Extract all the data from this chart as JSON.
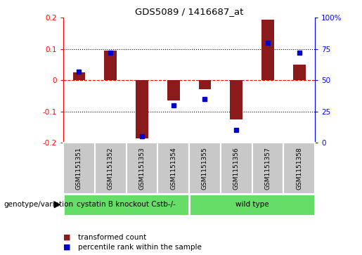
{
  "title": "GDS5089 / 1416687_at",
  "samples": [
    "GSM1151351",
    "GSM1151352",
    "GSM1151353",
    "GSM1151354",
    "GSM1151355",
    "GSM1151356",
    "GSM1151357",
    "GSM1151358"
  ],
  "transformed_count": [
    0.025,
    0.095,
    -0.185,
    -0.065,
    -0.028,
    -0.125,
    0.195,
    0.05
  ],
  "percentile_rank": [
    57,
    72,
    5,
    30,
    35,
    10,
    80,
    72
  ],
  "ylim_left": [
    -0.2,
    0.2
  ],
  "ylim_right": [
    0,
    100
  ],
  "yticks_left": [
    -0.2,
    -0.1,
    0.0,
    0.1,
    0.2
  ],
  "yticks_right": [
    0,
    25,
    50,
    75,
    100
  ],
  "ytick_labels_left": [
    "-0.2",
    "-0.1",
    "0",
    "0.1",
    "0.2"
  ],
  "ytick_labels_right": [
    "0",
    "25",
    "50",
    "75",
    "100%"
  ],
  "group1_label": "cystatin B knockout Cstb-/-",
  "group2_label": "wild type",
  "group1_count": 4,
  "group2_count": 4,
  "group_label_text": "genotype/variation",
  "legend_red_label": "transformed count",
  "legend_blue_label": "percentile rank within the sample",
  "bar_color": "#8B1A1A",
  "dot_color": "#0000CC",
  "group_bg_color": "#66DD66",
  "xlabel_bg_color": "#C8C8C8",
  "zero_line_color": "#FF0000",
  "bar_width": 0.4,
  "dot_size": 4
}
